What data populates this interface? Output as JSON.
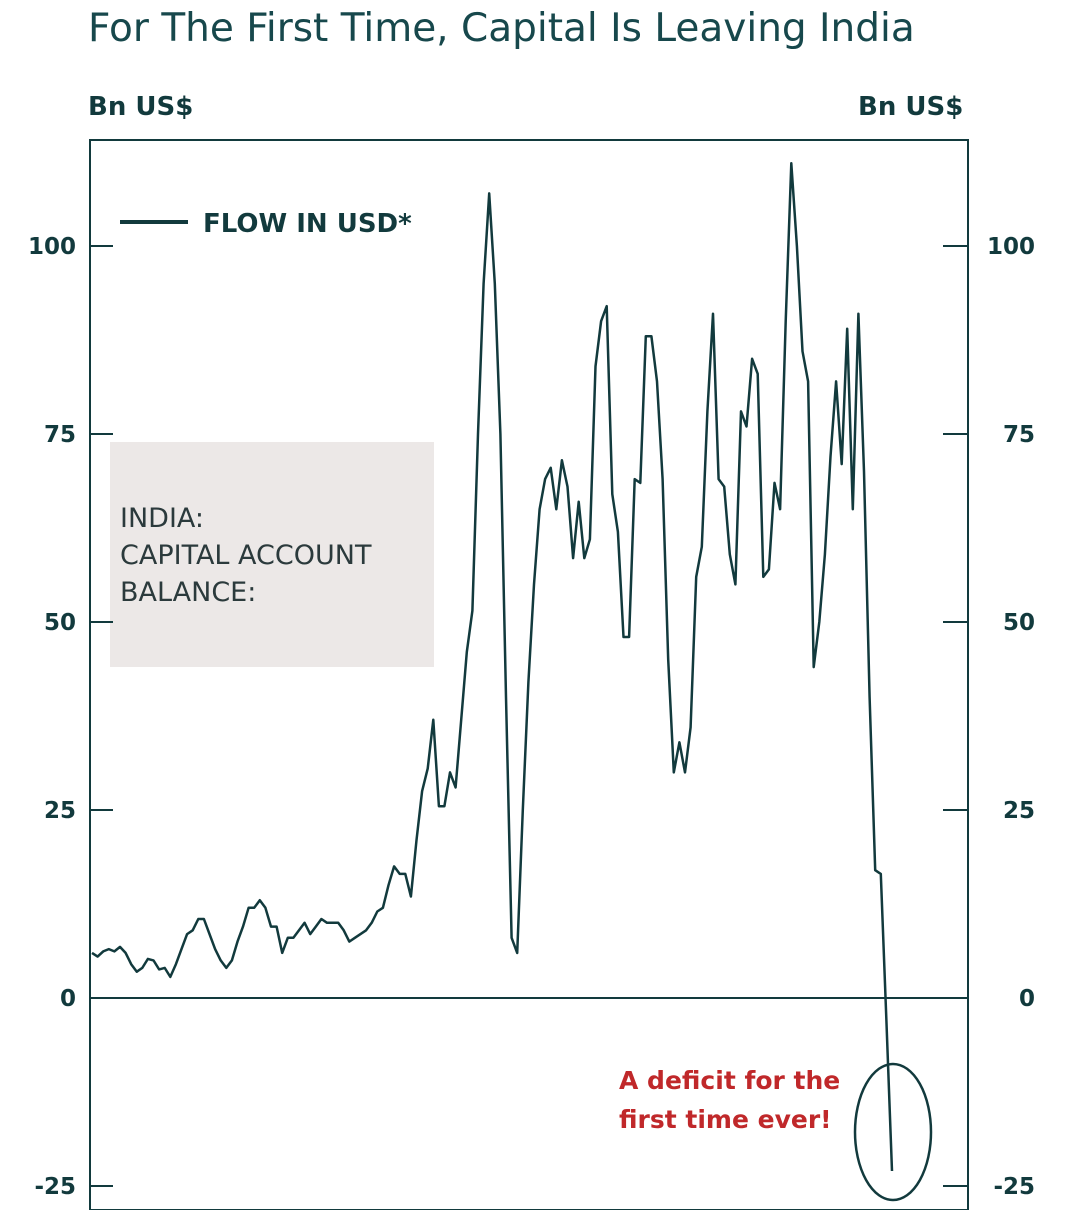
{
  "title": "For The First Time, Capital Is Leaving India",
  "units": {
    "left": "Bn US$",
    "right": "Bn US$"
  },
  "legend": {
    "label": "FLOW IN USD*"
  },
  "info_box": {
    "lines": [
      "INDIA:",
      "CAPITAL ACCOUNT",
      "BALANCE:"
    ]
  },
  "annotation": {
    "lines": [
      "A deficit for the",
      "first time ever!"
    ],
    "color": "#c0282a"
  },
  "colors": {
    "line": "#123a3d",
    "box_fill": "#ece8e7"
  },
  "chart_data": {
    "type": "line",
    "ylim": [
      -27,
      113
    ],
    "yticks": [
      -25,
      0,
      25,
      50,
      75,
      100
    ],
    "ytick_labels": [
      "-25",
      "0",
      "25",
      "50",
      "75",
      "100"
    ],
    "grid": false,
    "legend_position": "top-left",
    "series": [
      {
        "name": "FLOW IN USD*",
        "values": [
          6.0,
          5.5,
          6.2,
          6.5,
          6.2,
          6.8,
          6.0,
          4.5,
          3.5,
          4.0,
          5.2,
          5.0,
          3.8,
          4.0,
          2.8,
          4.5,
          6.5,
          8.5,
          9.0,
          10.5,
          10.5,
          8.5,
          6.5,
          5.0,
          4.0,
          5.0,
          7.5,
          9.5,
          12.0,
          12.0,
          13.0,
          12.0,
          9.5,
          9.5,
          6.0,
          8.0,
          8.0,
          9.0,
          10.0,
          8.5,
          9.5,
          10.5,
          10.0,
          10.0,
          10.0,
          9.0,
          7.5,
          8.0,
          8.5,
          9.0,
          10.0,
          11.5,
          12.0,
          15.0,
          17.5,
          16.5,
          16.5,
          13.5,
          21.0,
          27.5,
          30.5,
          37.0,
          25.5,
          25.5,
          30.0,
          28.0,
          37.0,
          46.0,
          51.5,
          75.0,
          95.0,
          107.0,
          95.0,
          75.0,
          40.0,
          8.0,
          6.0,
          25.0,
          42.0,
          55.0,
          65.0,
          69.0,
          70.5,
          65.0,
          71.5,
          68.0,
          58.5,
          66.0,
          58.5,
          61.0,
          84.0,
          90.0,
          92.0,
          67.0,
          62.0,
          48.0,
          48.0,
          69.0,
          68.5,
          88.0,
          88.0,
          82.0,
          69.0,
          45.0,
          30.0,
          34.0,
          30.0,
          36.0,
          56.0,
          60.0,
          78.0,
          91.0,
          69.0,
          68.0,
          59.0,
          55.0,
          78.0,
          76.0,
          85.0,
          83.0,
          56.0,
          57.0,
          68.5,
          65.0,
          90.0,
          111.0,
          100.0,
          86.0,
          82.0,
          44.0,
          50.0,
          59.0,
          72.0,
          82.0,
          71.0,
          89.0,
          65.0,
          91.0,
          70.0,
          40.0,
          17.0,
          16.5,
          -3.0,
          -23.0
        ]
      }
    ]
  }
}
